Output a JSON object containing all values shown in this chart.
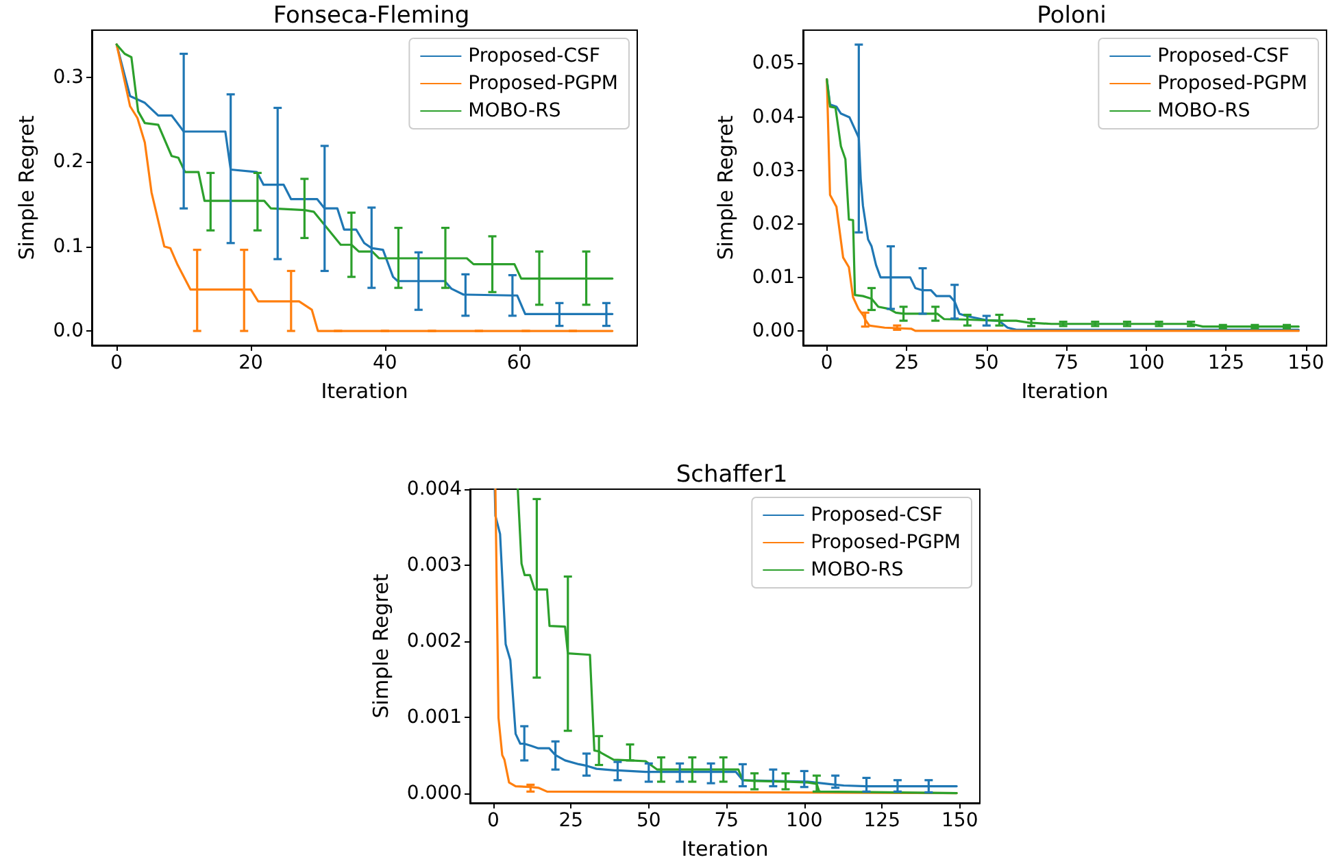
{
  "chart_data": [
    {
      "type": "line",
      "title": "Fonseca-Fleming",
      "xlabel": "Iteration",
      "ylabel": "Simple Regret",
      "xlim": [
        -3.7,
        77.6
      ],
      "xticks": [
        0,
        20,
        40,
        60
      ],
      "ylim": [
        -0.017,
        0.356
      ],
      "yticks": [
        {
          "value": 0,
          "label": "0.0"
        },
        0.1,
        0.2,
        0.3
      ],
      "grid": false,
      "legend": "top right",
      "line_style": "solid",
      "marker": "none",
      "series": [
        {
          "name": "Proposed-CSF",
          "color": "#1f77b4",
          "x": [
            0,
            2,
            4.2,
            6.2,
            8.2,
            10,
            16.2,
            17,
            20.9,
            21.9,
            24,
            24.9,
            26,
            29.9,
            31,
            32.9,
            33.9,
            35.7,
            36.9,
            38,
            39.7,
            41.2,
            41.9,
            45,
            48.9,
            49.9,
            51.7,
            52,
            59,
            59.7,
            60.9,
            66,
            73,
            73.9
          ],
          "values": [
            0.339,
            0.278,
            0.27,
            0.255,
            0.255,
            0.236,
            0.236,
            0.191,
            0.188,
            0.173,
            0.173,
            0.173,
            0.156,
            0.156,
            0.145,
            0.145,
            0.12,
            0.12,
            0.104,
            0.098,
            0.096,
            0.064,
            0.059,
            0.059,
            0.059,
            0.05,
            0.043,
            0.043,
            0.042,
            0.042,
            0.02,
            0.02,
            0.02,
            0.02
          ],
          "errors": [
            null,
            null,
            null,
            null,
            null,
            [
              0.145,
              0.328
            ],
            null,
            [
              0.104,
              0.28
            ],
            null,
            null,
            [
              0.085,
              0.264
            ],
            null,
            null,
            null,
            [
              0.071,
              0.219
            ],
            null,
            null,
            null,
            null,
            [
              0.051,
              0.146
            ],
            null,
            null,
            null,
            [
              0.025,
              0.093
            ],
            null,
            null,
            null,
            [
              0.018,
              0.067
            ],
            [
              0.018,
              0.066
            ],
            null,
            null,
            [
              0.006,
              0.033
            ],
            [
              0.006,
              0.033
            ],
            null
          ]
        },
        {
          "name": "Proposed-PGPM",
          "color": "#ff7f0e",
          "x": [
            0,
            2,
            3.1,
            4.2,
            5.2,
            7.1,
            8,
            9.1,
            11,
            12,
            19,
            20,
            21.1,
            26,
            27.2,
            29.1,
            30,
            33,
            40,
            47,
            54,
            61,
            68,
            73.9
          ],
          "values": [
            0.339,
            0.266,
            0.252,
            0.223,
            0.164,
            0.1,
            0.098,
            0.078,
            0.049,
            0.049,
            0.049,
            0.049,
            0.035,
            0.035,
            0.035,
            0.025,
            0,
            0,
            0,
            0,
            0,
            0,
            0,
            0
          ],
          "errors": [
            null,
            null,
            null,
            null,
            null,
            null,
            null,
            null,
            null,
            [
              0,
              0.096
            ],
            [
              0,
              0.096
            ],
            null,
            null,
            [
              0,
              0.071
            ],
            null,
            null,
            null,
            0,
            0,
            0,
            0,
            0,
            0,
            null
          ]
        },
        {
          "name": "MOBO-RS",
          "color": "#2ca02c",
          "x": [
            0,
            1.2,
            2.2,
            3.2,
            4.2,
            6.2,
            8.2,
            9.2,
            10.2,
            12.2,
            13.1,
            14,
            21,
            22,
            23,
            28,
            29.4,
            33.4,
            35,
            36.1,
            38.1,
            39.1,
            42,
            49,
            52.2,
            53.2,
            56,
            59.3,
            60.3,
            63,
            70,
            73.9
          ],
          "values": [
            0.339,
            0.328,
            0.324,
            0.26,
            0.246,
            0.244,
            0.207,
            0.205,
            0.188,
            0.188,
            0.154,
            0.154,
            0.154,
            0.154,
            0.145,
            0.143,
            0.141,
            0.102,
            0.102,
            0.094,
            0.094,
            0.086,
            0.086,
            0.086,
            0.086,
            0.079,
            0.079,
            0.079,
            0.062,
            0.062,
            0.062,
            0.062
          ],
          "errors": [
            null,
            null,
            null,
            null,
            null,
            null,
            null,
            null,
            null,
            null,
            null,
            [
              0.119,
              0.187
            ],
            [
              0.119,
              0.187
            ],
            null,
            null,
            [
              0.11,
              0.18
            ],
            null,
            null,
            [
              0.064,
              0.14
            ],
            null,
            null,
            null,
            [
              0.051,
              0.122
            ],
            [
              0.051,
              0.122
            ],
            null,
            null,
            [
              0.046,
              0.112
            ],
            null,
            null,
            [
              0.031,
              0.094
            ],
            [
              0.031,
              0.094
            ],
            null
          ]
        }
      ]
    },
    {
      "type": "line",
      "title": "Poloni",
      "xlabel": "Iteration",
      "ylabel": "Simple Regret",
      "xlim": [
        -7.45,
        156.45
      ],
      "xticks": [
        0,
        25,
        50,
        75,
        100,
        125,
        150
      ],
      "ylim": [
        -0.0027,
        0.0562
      ],
      "yticks": [
        {
          "value": 0,
          "label": "0.00"
        },
        {
          "value": 0.01,
          "label": "0.01"
        },
        {
          "value": 0.02,
          "label": "0.02"
        },
        {
          "value": 0.03,
          "label": "0.03"
        },
        {
          "value": 0.04,
          "label": "0.04"
        },
        {
          "value": 0.05,
          "label": "0.05"
        }
      ],
      "grid": false,
      "legend": "top right",
      "line_style": "solid",
      "marker": "none",
      "series": [
        {
          "name": "Proposed-CSF",
          "color": "#1f77b4",
          "x": [
            0,
            1,
            3,
            4.4,
            7.1,
            10,
            10.6,
            11.3,
            12.9,
            14,
            15.4,
            16.8,
            20,
            26.1,
            27.7,
            29.8,
            30,
            32.6,
            34.3,
            38.5,
            40,
            41.5,
            43.5,
            48.4,
            50,
            53.8,
            56.6,
            59.3,
            147.7
          ],
          "values": [
            0.047,
            0.0423,
            0.0419,
            0.0406,
            0.0399,
            0.0361,
            0.0284,
            0.0234,
            0.0171,
            0.0158,
            0.0123,
            0.01,
            0.01,
            0.01,
            0.008,
            0.0076,
            0.0076,
            0.0076,
            0.0065,
            0.0065,
            0.0055,
            0.0032,
            0.0028,
            0.0022,
            0.002,
            0.0019,
            0.0006,
            0.0002,
            0.0002
          ],
          "errors": [
            null,
            null,
            null,
            null,
            null,
            [
              0.0184,
              0.0535
            ],
            null,
            null,
            null,
            null,
            null,
            null,
            [
              0.0041,
              0.0158
            ],
            null,
            null,
            null,
            [
              0.0032,
              0.0117
            ],
            null,
            null,
            null,
            [
              0.0023,
              0.0086
            ],
            null,
            null,
            null,
            [
              0.001,
              0.0028
            ],
            null,
            null,
            null,
            null
          ]
        },
        {
          "name": "Proposed-PGPM",
          "color": "#ff7f0e",
          "x": [
            0,
            1,
            3,
            5.1,
            6.9,
            8.2,
            9.9,
            11.5,
            12,
            13.3,
            18.1,
            22,
            26.4,
            27.7,
            147.7
          ],
          "values": [
            0.047,
            0.0254,
            0.0232,
            0.0137,
            0.0119,
            0.0063,
            0.0041,
            0.0028,
            0.0021,
            0.001,
            0.0006,
            0.0005,
            0.0004,
            0,
            0
          ],
          "errors": [
            null,
            null,
            null,
            null,
            null,
            null,
            null,
            null,
            [
              0.0008,
              0.0034
            ],
            null,
            null,
            [
              0.0002,
              0.001
            ],
            null,
            null,
            null
          ]
        },
        {
          "name": "MOBO-RS",
          "color": "#2ca02c",
          "x": [
            0,
            1,
            2.7,
            4.4,
            5.8,
            6.9,
            8.2,
            8.8,
            11.3,
            14,
            16.1,
            19.5,
            21.6,
            24,
            34,
            34.6,
            36.7,
            44,
            54,
            59.3,
            63.5,
            64,
            70.3,
            74,
            84,
            94,
            104,
            114,
            117.7,
            124,
            134,
            144,
            147.7
          ],
          "values": [
            0.047,
            0.0419,
            0.0417,
            0.0345,
            0.0321,
            0.0208,
            0.0207,
            0.0067,
            0.0065,
            0.006,
            0.0045,
            0.0041,
            0.0034,
            0.0032,
            0.0032,
            0.0032,
            0.0022,
            0.0021,
            0.0019,
            0.0019,
            0.0015,
            0.0015,
            0.0013,
            0.0013,
            0.0013,
            0.0013,
            0.0013,
            0.0013,
            0.0008,
            0.0008,
            0.0008,
            0.0008,
            0.0008
          ],
          "errors": [
            null,
            null,
            null,
            null,
            null,
            null,
            null,
            null,
            null,
            [
              0.0039,
              0.008
            ],
            null,
            null,
            null,
            [
              0.0019,
              0.0045
            ],
            [
              0.0019,
              0.0045
            ],
            null,
            null,
            [
              0.001,
              0.003
            ],
            [
              0.001,
              0.003
            ],
            null,
            null,
            [
              0.0009,
              0.0022
            ],
            null,
            [
              0.0009,
              0.0017
            ],
            [
              0.0009,
              0.0017
            ],
            [
              0.0009,
              0.0017
            ],
            [
              0.0009,
              0.0017
            ],
            [
              0.0009,
              0.0017
            ],
            null,
            [
              0.0005,
              0.0011
            ],
            [
              0.0005,
              0.0011
            ],
            [
              0.0005,
              0.0011
            ],
            null
          ]
        }
      ]
    },
    {
      "type": "line",
      "title": "Schaffer1",
      "xlabel": "Iteration",
      "ylabel": "Simple Regret",
      "xlim": [
        -7.45,
        156.45
      ],
      "xticks": [
        0,
        25,
        50,
        75,
        100,
        125,
        150
      ],
      "ylim": [
        -0.00013,
        0.004
      ],
      "yticks": [
        {
          "value": 0,
          "label": "0.000"
        },
        {
          "value": 0.001,
          "label": "0.001"
        },
        {
          "value": 0.002,
          "label": "0.002"
        },
        {
          "value": 0.003,
          "label": "0.003"
        },
        {
          "value": 0.004,
          "label": "0.004"
        }
      ],
      "grid": false,
      "legend": "top right",
      "line_style": "solid",
      "marker": "none",
      "series": [
        {
          "name": "Proposed-CSF",
          "color": "#1f77b4",
          "x": [
            0.5,
            0.7,
            2.2,
            4,
            5.5,
            7.2,
            8.7,
            10,
            12.3,
            14.5,
            18,
            20,
            23.1,
            27.5,
            30,
            33.2,
            39,
            40,
            49,
            50,
            60,
            70,
            78,
            80.2,
            90,
            100,
            101,
            110,
            112.7,
            120,
            121.4,
            130,
            140,
            149
          ],
          "values": [
            0.004,
            0.00365,
            0.00341,
            0.00196,
            0.00175,
            0.00078,
            0.00065,
            0.00065,
            0.00062,
            0.00059,
            0.00059,
            0.0005,
            0.00043,
            0.00038,
            0.00036,
            0.00032,
            0.0003,
            0.0003,
            0.00028,
            0.00028,
            0.00028,
            0.00028,
            0.00028,
            0.00017,
            0.00016,
            0.00015,
            0.00015,
            0.00011,
            0.0001,
            9e-05,
            9e-05,
            9e-05,
            9e-05,
            9e-05
          ],
          "errors": [
            null,
            null,
            null,
            null,
            null,
            null,
            null,
            [
              0.00043,
              0.00088
            ],
            null,
            null,
            null,
            [
              0.00031,
              0.00068
            ],
            null,
            null,
            [
              0.00023,
              0.00052
            ],
            null,
            null,
            [
              0.00017,
              0.00041
            ],
            null,
            [
              0.00015,
              0.00039
            ],
            [
              0.00015,
              0.00039
            ],
            [
              0.00013,
              0.00039
            ],
            null,
            [
              9e-05,
              0.00038
            ],
            [
              9e-05,
              0.00031
            ],
            [
              8e-05,
              0.00029
            ],
            null,
            [
              7e-05,
              0.00023
            ],
            null,
            [
              2e-05,
              0.0002
            ],
            null,
            [
              2e-05,
              0.00017
            ],
            [
              1e-05,
              0.00017
            ],
            null
          ]
        },
        {
          "name": "Proposed-PGPM",
          "color": "#ff7f0e",
          "x": [
            0.7,
            1.7,
            2.9,
            3.6,
            5.1,
            7.2,
            12,
            14.5,
            17.3,
            149
          ],
          "values": [
            0.004,
            0.00099,
            0.0005,
            0.00044,
            0.00014,
            9e-05,
            8e-05,
            7e-05,
            2e-05,
            0
          ],
          "errors": [
            null,
            null,
            null,
            null,
            null,
            null,
            [
              2e-05,
              0.00011
            ],
            null,
            null,
            null
          ]
        },
        {
          "name": "MOBO-RS",
          "color": "#2ca02c",
          "x": [
            7.9,
            9.1,
            10.1,
            11.8,
            13.3,
            14,
            17.3,
            18.1,
            23.1,
            24,
            24.3,
            31.1,
            32.5,
            34,
            34.7,
            38.7,
            44,
            49,
            52.7,
            54,
            64,
            74,
            78.8,
            80.2,
            84,
            94,
            101.2,
            104,
            104.8,
            149
          ],
          "values": [
            0.004,
            0.00302,
            0.00287,
            0.00287,
            0.00268,
            0.00268,
            0.00268,
            0.0022,
            0.00219,
            0.00184,
            0.00184,
            0.00182,
            0.00056,
            0.00055,
            0.00053,
            0.00044,
            0.00043,
            0.00042,
            0.00031,
            0.00031,
            0.00031,
            0.00031,
            0.00031,
            0.00017,
            0.00016,
            0.00015,
            0.00014,
            0.00012,
            2e-05,
            0
          ],
          "errors": [
            null,
            null,
            null,
            null,
            null,
            [
              0.00152,
              0.00387
            ],
            null,
            null,
            null,
            [
              0.00082,
              0.00285
            ],
            null,
            null,
            null,
            [
              0.00037,
              0.00075
            ],
            null,
            null,
            [
              0.00043,
              0.00064
            ],
            null,
            null,
            [
              0.00015,
              0.00047
            ],
            [
              0.00015,
              0.00047
            ],
            [
              0.00015,
              0.00047
            ],
            null,
            null,
            [
              5e-05,
              0.00026
            ],
            [
              5e-05,
              0.00026
            ],
            null,
            [
              2e-05,
              0.00023
            ],
            null,
            null
          ]
        }
      ]
    }
  ]
}
